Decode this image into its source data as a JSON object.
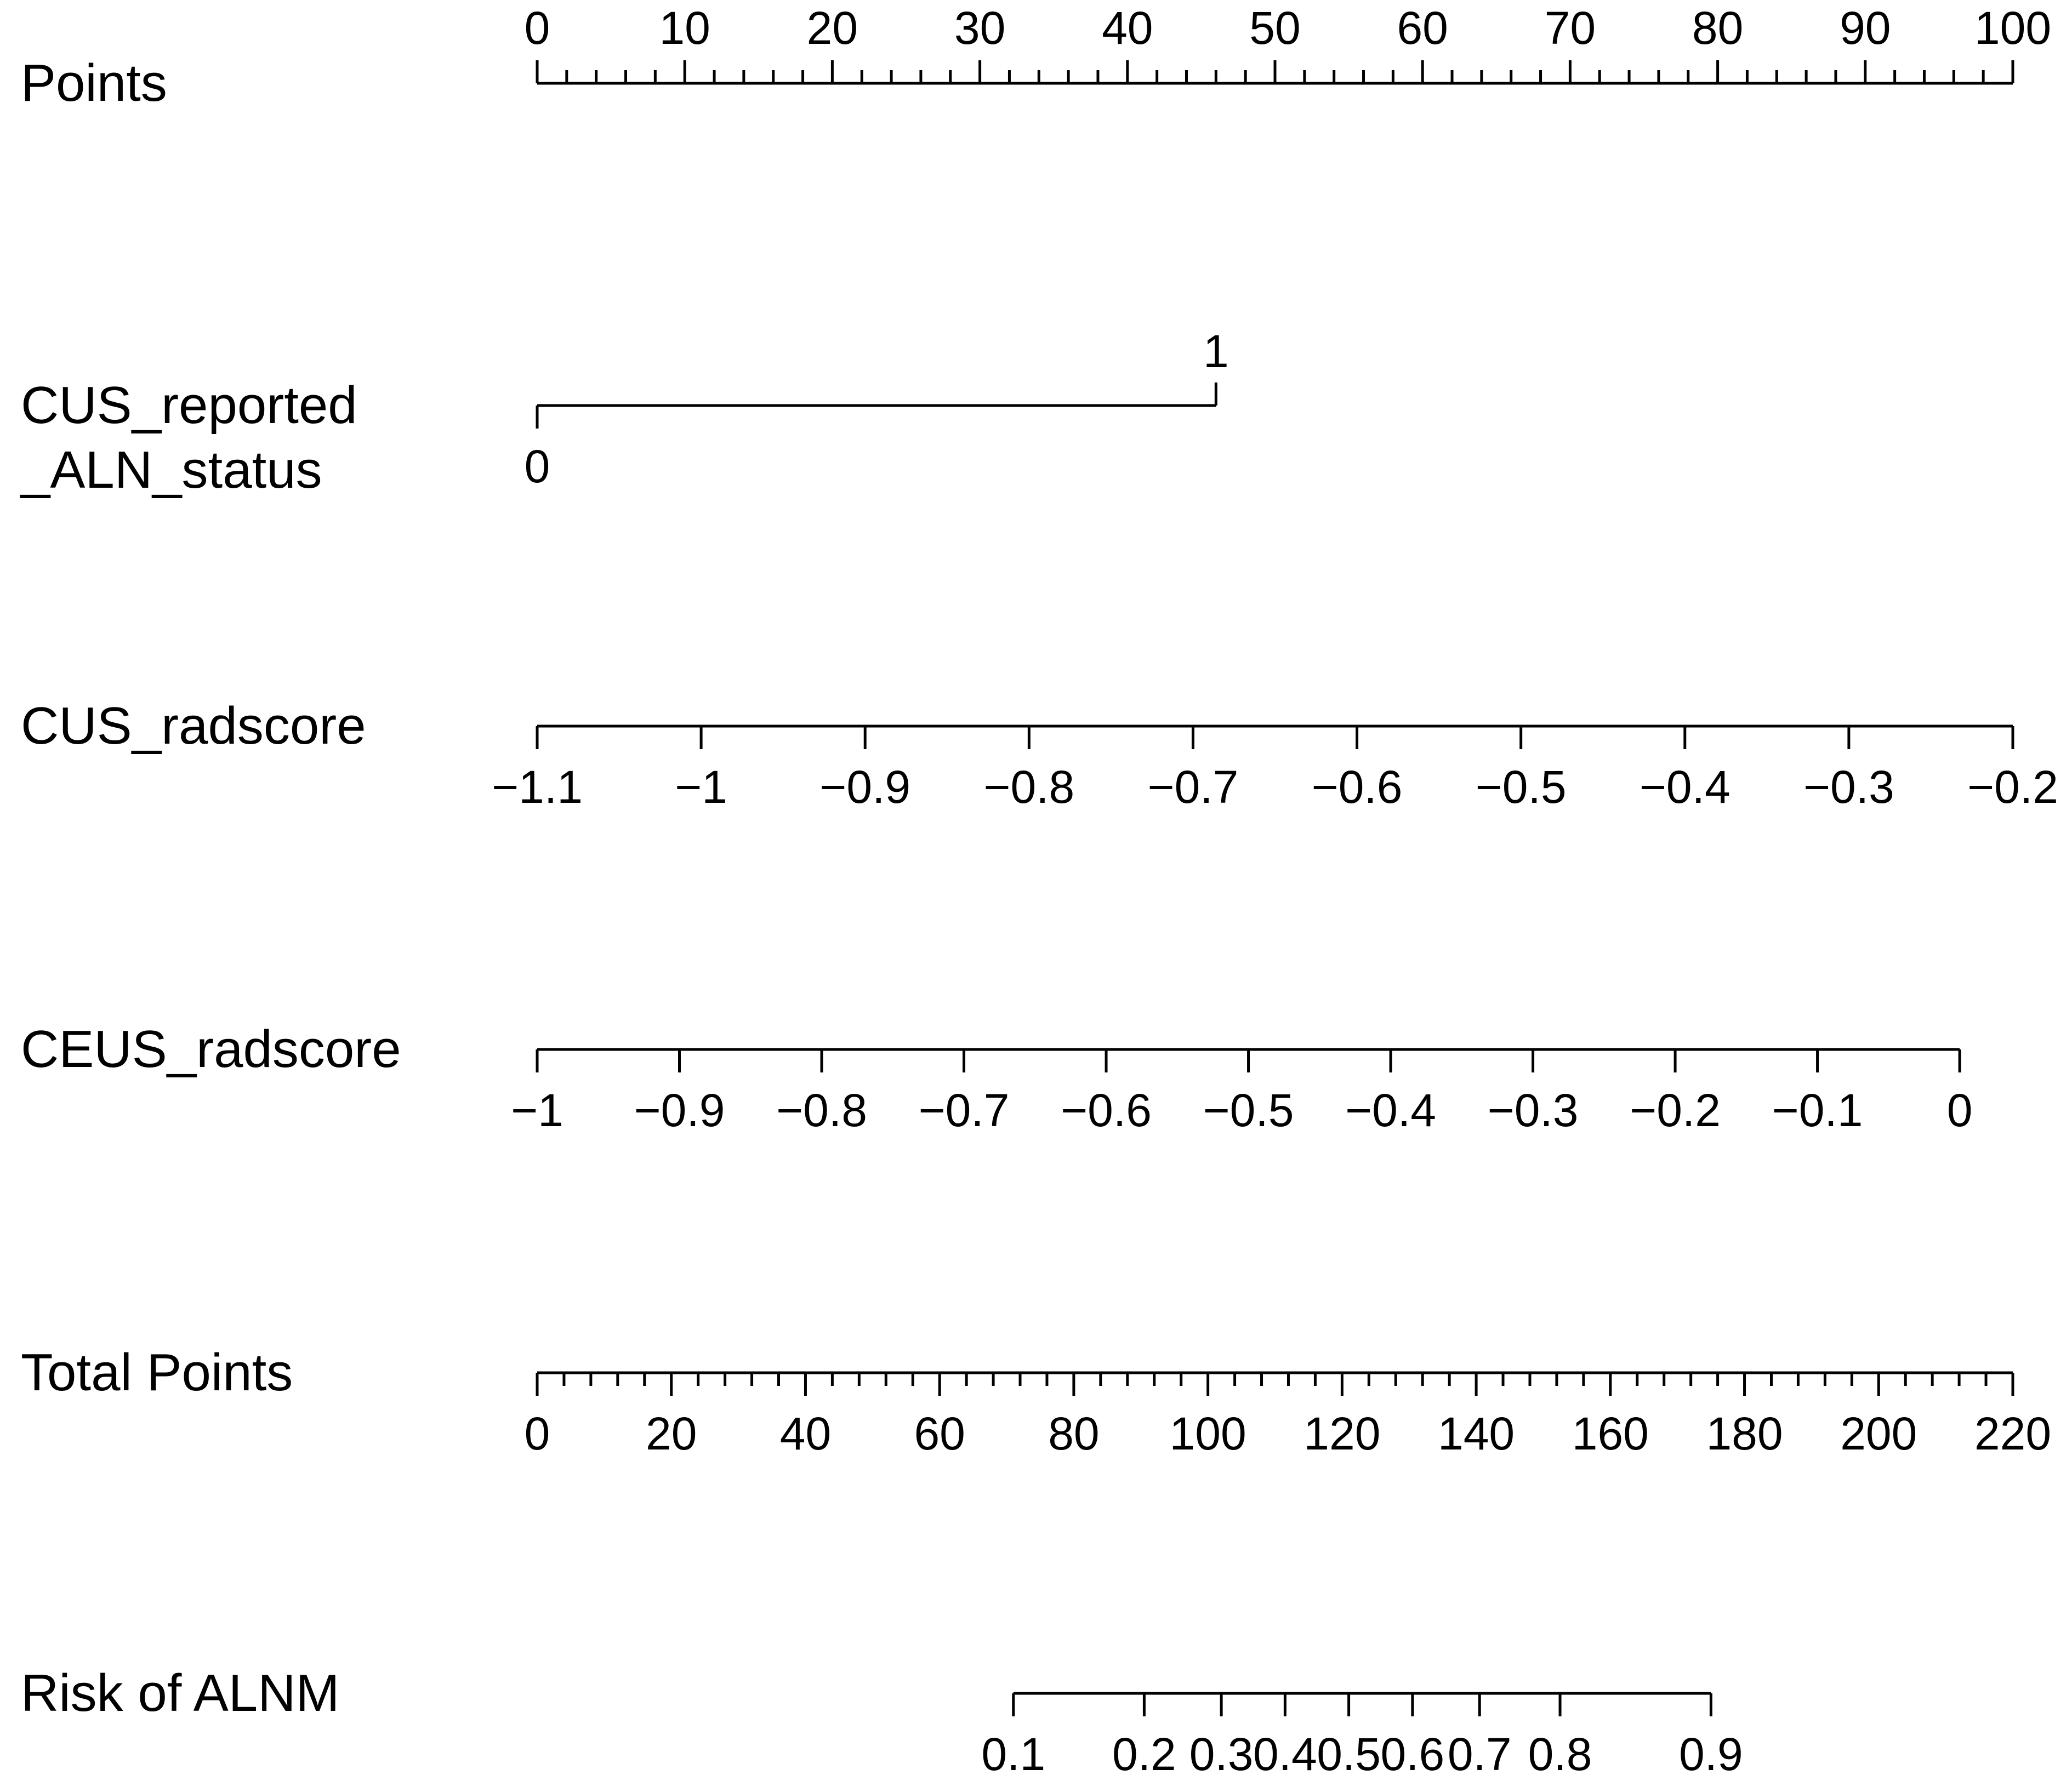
{
  "chart_data": {
    "type": "nomogram",
    "title": "",
    "rows": [
      {
        "id": "points",
        "label_lines": [
          "Points"
        ],
        "range": [
          0,
          100
        ],
        "ticks": [
          0,
          10,
          20,
          30,
          40,
          50,
          60,
          70,
          80,
          90,
          100
        ],
        "tick_labels": [
          "0",
          "10",
          "20",
          "30",
          "40",
          "50",
          "60",
          "70",
          "80",
          "90",
          "100"
        ],
        "minor_step": 2,
        "labels_above": true
      },
      {
        "id": "cus_reported_aln_status",
        "label_lines": [
          "CUS_reported",
          "_ALN_status"
        ],
        "type": "categorical",
        "levels": [
          {
            "label": "0",
            "points": 0
          },
          {
            "label": "1",
            "points": 46
          }
        ]
      },
      {
        "id": "cus_radscore",
        "label_lines": [
          "CUS_radscore"
        ],
        "range": [
          -1.1,
          -0.2
        ],
        "points_range": [
          0,
          100
        ],
        "ticks": [
          -1.1,
          -1,
          -0.9,
          -0.8,
          -0.7,
          -0.6,
          -0.5,
          -0.4,
          -0.3,
          -0.2
        ],
        "tick_labels": [
          "−1.1",
          "−1",
          "−0.9",
          "−0.8",
          "−0.7",
          "−0.6",
          "−0.5",
          "−0.4",
          "−0.3",
          "−0.2"
        ]
      },
      {
        "id": "ceus_radscore",
        "label_lines": [
          "CEUS_radscore"
        ],
        "range": [
          -1,
          0
        ],
        "points_range": [
          0,
          96.4
        ],
        "ticks": [
          -1,
          -0.9,
          -0.8,
          -0.7,
          -0.6,
          -0.5,
          -0.4,
          -0.3,
          -0.2,
          -0.1,
          0
        ],
        "tick_labels": [
          "−1",
          "−0.9",
          "−0.8",
          "−0.7",
          "−0.6",
          "−0.5",
          "−0.4",
          "−0.3",
          "−0.2",
          "−0.1",
          "0"
        ]
      },
      {
        "id": "total_points",
        "label_lines": [
          "Total Points"
        ],
        "range": [
          0,
          220
        ],
        "ticks": [
          0,
          20,
          40,
          60,
          80,
          100,
          120,
          140,
          160,
          180,
          200,
          220
        ],
        "tick_labels": [
          "0",
          "20",
          "40",
          "60",
          "80",
          "100",
          "120",
          "140",
          "160",
          "180",
          "200",
          "220"
        ],
        "minor_step": 4
      },
      {
        "id": "risk_of_alnm",
        "label_lines": [
          "Risk of ALNM"
        ],
        "type": "probability",
        "ticks": [
          {
            "label": "0.1",
            "total_points": 71
          },
          {
            "label": "0.2",
            "total_points": 90.5
          },
          {
            "label": "0.3",
            "total_points": 102
          },
          {
            "label": "0.4",
            "total_points": 111.5
          },
          {
            "label": "0.5",
            "total_points": 121
          },
          {
            "label": "0.6",
            "total_points": 130.5
          },
          {
            "label": "0.7",
            "total_points": 140.5
          },
          {
            "label": "0.8",
            "total_points": 152.5
          },
          {
            "label": "0.9",
            "total_points": 175
          }
        ]
      }
    ]
  }
}
